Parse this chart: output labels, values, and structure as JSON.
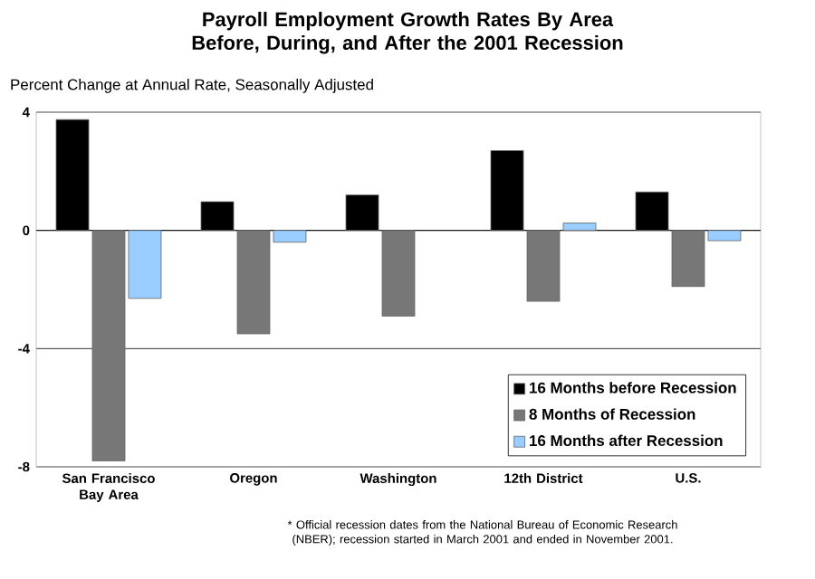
{
  "chart_data": {
    "type": "bar",
    "title": "Payroll Employment Growth Rates By Area Before, During, and After the 2001 Recession",
    "subtitle": "Percent Change at Annual Rate, Seasonally Adjusted",
    "categories": [
      "San Francisco Bay Area",
      "Oregon",
      "Washington",
      "12th District",
      "U.S."
    ],
    "series": [
      {
        "name": "16 Months before Recession",
        "color": "#000000",
        "values": [
          3.75,
          0.97,
          1.2,
          2.7,
          1.3
        ]
      },
      {
        "name": "8 Months of Recession",
        "color": "#777777",
        "values": [
          -7.8,
          -3.5,
          -2.9,
          -2.4,
          -1.9
        ]
      },
      {
        "name": "16 Months after Recession",
        "color": "#99ccff",
        "values": [
          -2.3,
          -0.4,
          null,
          0.25,
          -0.35
        ]
      }
    ],
    "ylim": [
      -8,
      4
    ],
    "yticks": [
      -8,
      -4,
      0,
      4
    ],
    "grid": "y",
    "legend": "bottom right",
    "annotations": [
      "* Official recession dates from the National Bureau of Economic Research (NBER); recession started in March 2001 and ended in November 2001."
    ]
  }
}
